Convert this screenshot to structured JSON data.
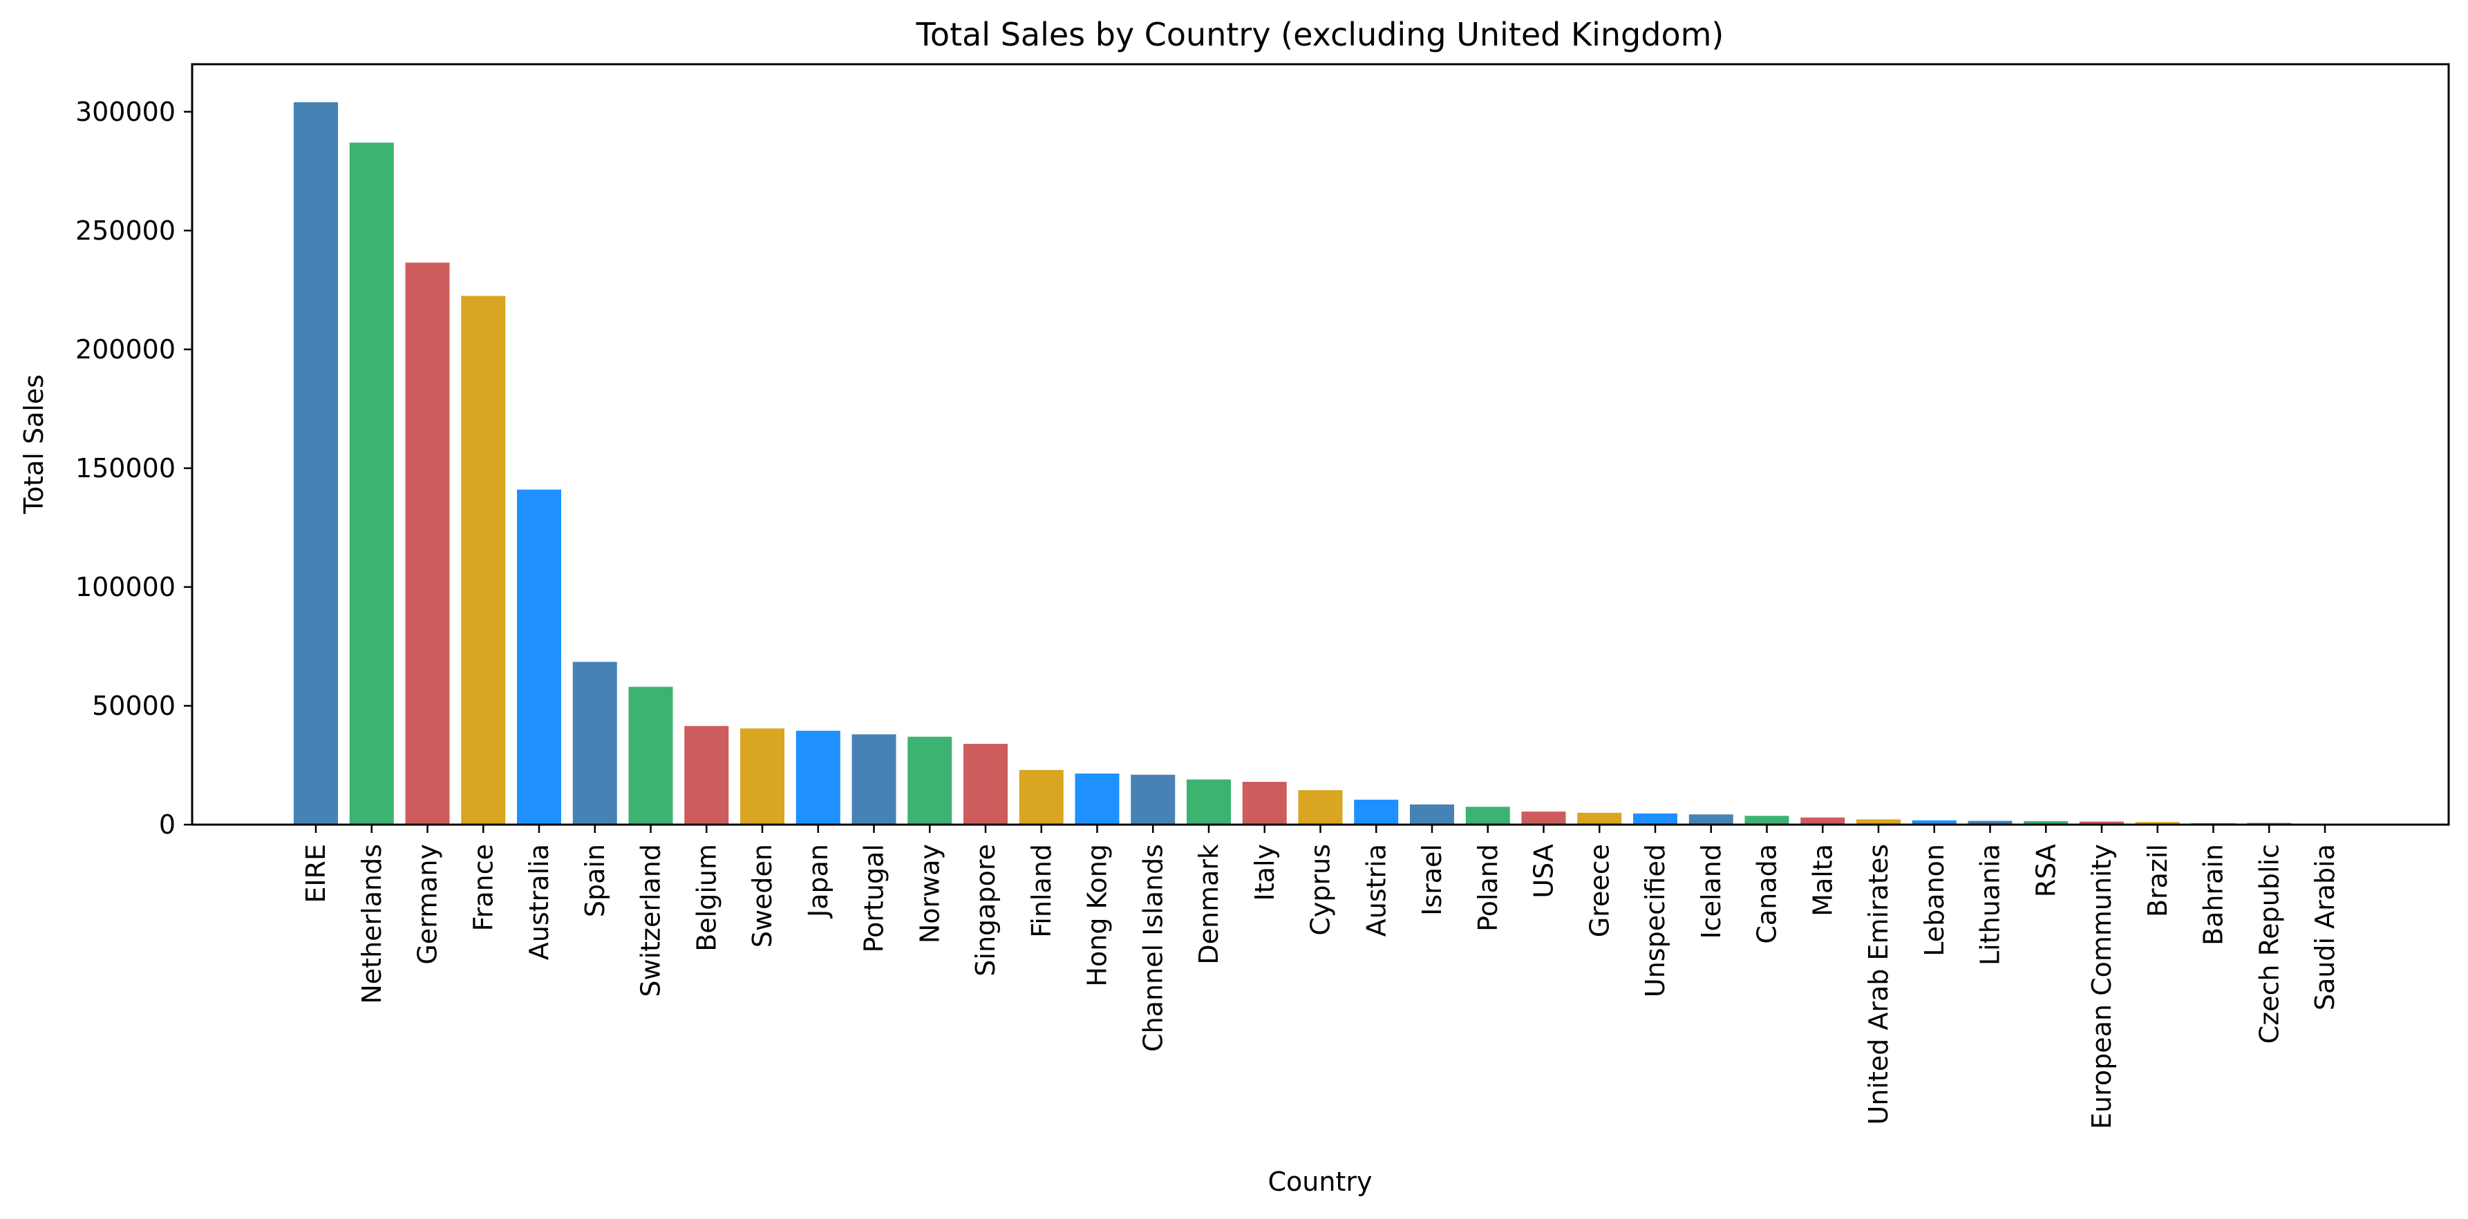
{
  "chart_data": {
    "type": "bar",
    "title": "Total Sales by Country (excluding United Kingdom)",
    "xlabel": "Country",
    "ylabel": "Total Sales",
    "ylim": [
      0,
      320000
    ],
    "yticks": [
      0,
      50000,
      100000,
      150000,
      200000,
      250000,
      300000
    ],
    "grid": false,
    "legend": "none",
    "colors": [
      "#4682B4",
      "#3CB371",
      "#CD5C5C",
      "#DAA520",
      "#1E90FF"
    ],
    "categories": [
      "EIRE",
      "Netherlands",
      "Germany",
      "France",
      "Australia",
      "Spain",
      "Switzerland",
      "Belgium",
      "Sweden",
      "Japan",
      "Portugal",
      "Norway",
      "Singapore",
      "Finland",
      "Hong Kong",
      "Channel Islands",
      "Denmark",
      "Italy",
      "Cyprus",
      "Austria",
      "Israel",
      "Poland",
      "USA",
      "Greece",
      "Unspecified",
      "Iceland",
      "Canada",
      "Malta",
      "United Arab Emirates",
      "Lebanon",
      "Lithuania",
      "RSA",
      "European Community",
      "Brazil",
      "Bahrain",
      "Czech Republic",
      "Saudi Arabia"
    ],
    "values": [
      304000,
      287000,
      236500,
      222500,
      141000,
      68500,
      58000,
      41500,
      40500,
      39500,
      38000,
      37000,
      34000,
      23000,
      21500,
      21000,
      19000,
      18000,
      14500,
      10500,
      8500,
      7500,
      5500,
      5000,
      4700,
      4300,
      3700,
      3000,
      2200,
      1800,
      1600,
      1500,
      1300,
      1100,
      600,
      700,
      150
    ]
  }
}
